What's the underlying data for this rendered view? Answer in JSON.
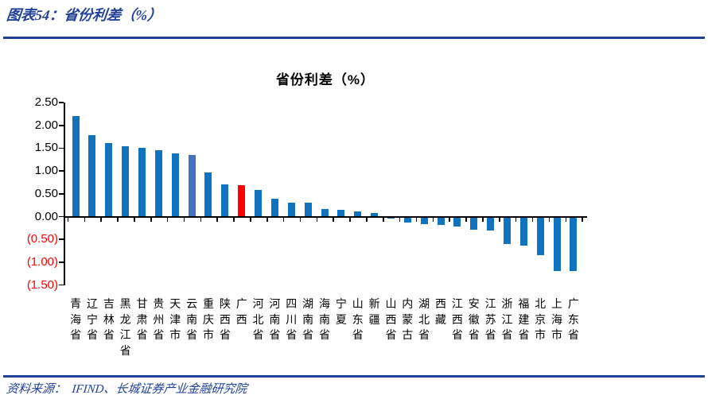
{
  "figure": {
    "caption": "图表54：省份利差（%）",
    "source": "资料来源：  IFIND、长城证券产业金融研究院"
  },
  "colors": {
    "accent_navy": "#21409A",
    "bar_default": "#1172BD",
    "bar_yunnan_highlight": "#4472C4",
    "bar_guangxi_highlight": "#FB0000",
    "axis": "#000000",
    "negative_tick_label": "#FF0000"
  },
  "chart_data": {
    "type": "bar",
    "title": "省份利差（%）",
    "categories": [
      "青海省",
      "辽宁省",
      "吉林省",
      "黑龙江省",
      "甘肃省",
      "贵州省",
      "天津市",
      "云南省",
      "重庆市",
      "陕西省",
      "广西",
      "河北省",
      "河南省",
      "四川省",
      "湖南省",
      "海南省",
      "宁夏",
      "山东省",
      "新疆",
      "山西省",
      "内蒙古",
      "湖北省",
      "西藏",
      "江西省",
      "安徽省",
      "江苏省",
      "浙江省",
      "福建省",
      "北京市",
      "上海市",
      "广东省"
    ],
    "values": [
      2.2,
      1.78,
      1.62,
      1.54,
      1.5,
      1.45,
      1.38,
      1.36,
      0.97,
      0.71,
      0.69,
      0.58,
      0.4,
      0.31,
      0.3,
      0.17,
      0.14,
      0.11,
      0.07,
      -0.01,
      -0.13,
      -0.16,
      -0.19,
      -0.21,
      -0.29,
      -0.31,
      -0.6,
      -0.64,
      -0.84,
      -1.19,
      -1.2
    ],
    "highlights": [
      {
        "index": 7,
        "category": "云南省",
        "color_key": "bar_yunnan_highlight"
      },
      {
        "index": 10,
        "category": "广西",
        "color_key": "bar_guangxi_highlight"
      }
    ],
    "ylim": [
      -1.5,
      2.5
    ],
    "ytick_step": 0.5,
    "ytick_values": [
      2.5,
      2.0,
      1.5,
      1.0,
      0.5,
      0.0,
      -0.5,
      -1.0,
      -1.5
    ],
    "ytick_labels": [
      "2.50",
      "2.00",
      "1.50",
      "1.00",
      "0.50",
      "0.00",
      "(0.50)",
      "(1.00)",
      "(1.50)"
    ],
    "xlabel": "",
    "ylabel": "",
    "unit": "%",
    "grid": false,
    "legend": false,
    "negative_labels_in_parentheses_red": true
  }
}
